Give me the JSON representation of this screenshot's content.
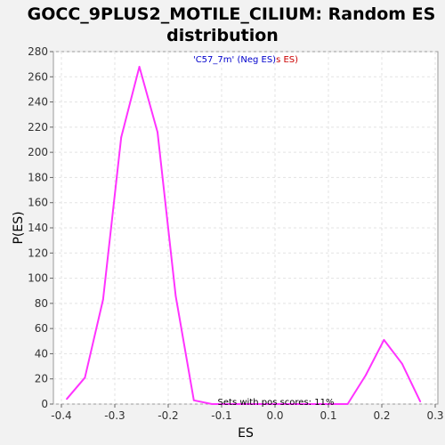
{
  "chart_data": {
    "type": "line",
    "title_line1": "GOCC_9PLUS2_MOTILE_CILIUM: Random ES",
    "title_line2": "distribution",
    "xlabel": "ES",
    "ylabel": "P(ES)",
    "xlim": [
      -0.415,
      0.305
    ],
    "ylim": [
      0,
      280
    ],
    "x_ticks": [
      -0.4,
      -0.3,
      -0.2,
      -0.1,
      0.0,
      0.1,
      0.2,
      0.3
    ],
    "x_tick_labels": [
      "-0.4",
      "-0.3",
      "-0.2",
      "-0.1",
      "0.0",
      "0.1",
      "0.2",
      "0.3"
    ],
    "y_ticks": [
      0,
      20,
      40,
      60,
      80,
      100,
      120,
      140,
      160,
      180,
      200,
      220,
      240,
      260,
      280
    ],
    "y_tick_labels": [
      "0",
      "20",
      "40",
      "60",
      "80",
      "100",
      "120",
      "140",
      "160",
      "180",
      "200",
      "220",
      "240",
      "260",
      "280"
    ],
    "grid": true,
    "legend": {
      "part1": "'C57_7m' (Neg ES)",
      "part2": "s ES)",
      "color1": "#0000cc",
      "color2": "#cc0000",
      "placement": "top-center"
    },
    "annotation": "Sets with pos scores: 11%",
    "series": [
      {
        "color": "#ff33ff",
        "x": [
          -0.39,
          -0.356,
          -0.322,
          -0.288,
          -0.254,
          -0.22,
          -0.186,
          -0.152,
          -0.118,
          -0.084,
          -0.05,
          -0.016,
          0.018,
          0.052,
          0.086,
          0.12,
          0.136,
          0.17,
          0.204,
          0.238,
          0.272
        ],
        "y": [
          4,
          21,
          83,
          212,
          268,
          216,
          86,
          3,
          0,
          0,
          0,
          0,
          0,
          0,
          0,
          0,
          0,
          23,
          51,
          32,
          2
        ]
      }
    ]
  }
}
